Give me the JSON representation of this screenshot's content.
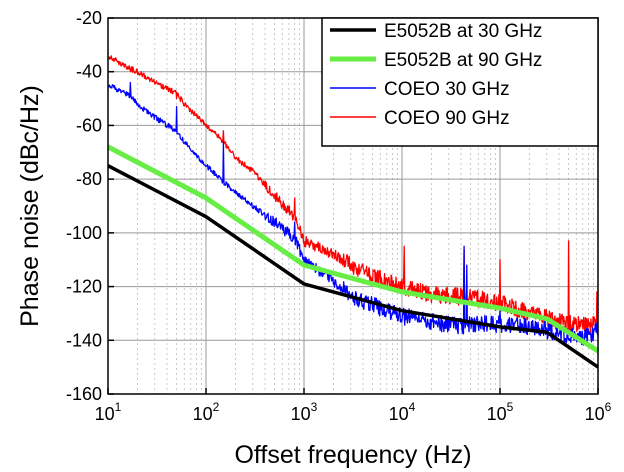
{
  "chart_data": {
    "type": "line",
    "xlabel": "Offset frequency (Hz)",
    "ylabel": "Phase noise (dBc/Hz)",
    "x_scale": "log",
    "xlim": [
      10,
      1000000
    ],
    "ylim": [
      -160,
      -20
    ],
    "x_ticks": [
      {
        "base": "10",
        "exp": "1"
      },
      {
        "base": "10",
        "exp": "2"
      },
      {
        "base": "10",
        "exp": "3"
      },
      {
        "base": "10",
        "exp": "4"
      },
      {
        "base": "10",
        "exp": "5"
      },
      {
        "base": "10",
        "exp": "6"
      }
    ],
    "y_ticks": [
      "-160",
      "-140",
      "-120",
      "-100",
      "-80",
      "-60",
      "-40",
      "-20"
    ],
    "grid": true,
    "legend_position": "top-right",
    "series": [
      {
        "name": "E5052B at 30 GHz",
        "color": "#000000",
        "x": [
          10,
          100,
          1000,
          10000,
          100000,
          300000,
          1000000
        ],
        "y": [
          -75,
          -94,
          -119,
          -129,
          -135,
          -137,
          -150
        ]
      },
      {
        "name": "E5052B at 90 GHz",
        "color": "#66ee44",
        "x": [
          10,
          100,
          1000,
          10000,
          100000,
          300000,
          1000000
        ],
        "y": [
          -68,
          -87,
          -112,
          -122,
          -128,
          -132,
          -144
        ]
      },
      {
        "name": "COEO 30 GHz",
        "color": "#0000ff",
        "x": [
          10,
          17,
          20,
          30,
          50,
          60,
          100,
          150,
          200,
          300,
          500,
          800,
          1000,
          2000,
          3000,
          5000,
          10000,
          20000,
          43000,
          50000,
          100000,
          200000,
          500000,
          800000,
          1000000
        ],
        "y": [
          -45,
          -49,
          -52,
          -57,
          -62,
          -66,
          -75,
          -81,
          -85,
          -90,
          -96,
          -102,
          -110,
          -118,
          -123,
          -127,
          -131,
          -133,
          -135,
          -134,
          -134,
          -135,
          -138,
          -139,
          -136
        ],
        "spikes": [
          [
            17,
            -44
          ],
          [
            50,
            -53
          ],
          [
            150,
            -66
          ],
          [
            800,
            -96
          ],
          [
            43000,
            -105
          ],
          [
            46000,
            -112
          ],
          [
            100000,
            -128
          ]
        ]
      },
      {
        "name": "COEO 90 GHz",
        "color": "#ff0000",
        "x": [
          10,
          15,
          20,
          30,
          50,
          60,
          100,
          150,
          200,
          300,
          500,
          800,
          1000,
          2000,
          3000,
          5000,
          10000,
          20000,
          50000,
          100000,
          200000,
          500000,
          800000,
          1000000
        ],
        "y": [
          -34,
          -38,
          -40,
          -44,
          -48,
          -52,
          -60,
          -66,
          -72,
          -77,
          -86,
          -94,
          -103,
          -108,
          -112,
          -116,
          -120,
          -123,
          -124,
          -126,
          -130,
          -134,
          -134,
          -134
        ],
        "spikes": [
          [
            50,
            -50
          ],
          [
            150,
            -62
          ],
          [
            800,
            -87
          ],
          [
            10500,
            -105
          ],
          [
            43000,
            -106
          ],
          [
            100000,
            -110
          ],
          [
            500000,
            -103
          ],
          [
            980000,
            -122
          ]
        ]
      }
    ]
  }
}
